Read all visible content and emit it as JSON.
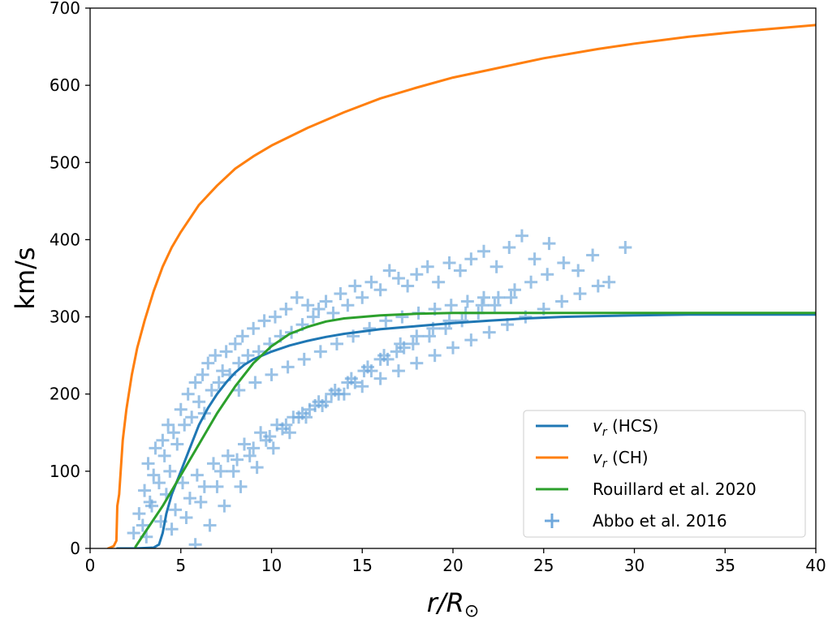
{
  "chart_data": {
    "type": "line",
    "title": "",
    "xlabel": "r/R⊙",
    "xlabel_main": "r/R",
    "xlabel_sub": "⊙",
    "ylabel": "km/s",
    "xlim": [
      0,
      40
    ],
    "ylim": [
      0,
      700
    ],
    "xticks": [
      0,
      5,
      10,
      15,
      20,
      25,
      30,
      35,
      40
    ],
    "yticks": [
      0,
      100,
      200,
      300,
      400,
      500,
      600,
      700
    ],
    "grid": false,
    "legend_position": "bottom-right",
    "series": [
      {
        "name": "v_r (HCS)",
        "legend_main": "v",
        "legend_sub": "r",
        "legend_suffix": " (HCS)",
        "type": "line",
        "color": "#1f77b4",
        "x": [
          1.5,
          2.5,
          3.5,
          3.8,
          4.0,
          4.2,
          4.5,
          5.0,
          5.5,
          6.0,
          6.5,
          7.0,
          7.5,
          8.0,
          8.5,
          9.0,
          10.0,
          11.0,
          12.0,
          13.0,
          14.0,
          15.0,
          16.0,
          17.0,
          18.0,
          19.0,
          20.0,
          22.0,
          24.0,
          26.0,
          28.0,
          30.0,
          33.0,
          36.0,
          40.0
        ],
        "y": [
          0,
          0,
          1,
          5,
          20,
          45,
          70,
          100,
          130,
          160,
          182,
          200,
          215,
          228,
          238,
          245,
          255,
          263,
          269,
          274,
          278,
          281,
          284,
          286,
          288,
          290,
          292,
          295,
          298,
          300,
          301,
          302,
          303,
          303,
          303
        ]
      },
      {
        "name": "v_r (CH)",
        "legend_main": "v",
        "legend_sub": "r",
        "legend_suffix": " (CH)",
        "type": "line",
        "color": "#ff7f0e",
        "x": [
          1.0,
          1.3,
          1.45,
          1.5,
          1.6,
          1.8,
          2.0,
          2.3,
          2.6,
          3.0,
          3.5,
          4.0,
          4.5,
          5.0,
          6.0,
          7.0,
          8.0,
          9.0,
          10.0,
          12.0,
          14.0,
          16.0,
          18.0,
          20.0,
          22.0,
          25.0,
          28.0,
          30.0,
          33.0,
          36.0,
          40.0
        ],
        "y": [
          0,
          3,
          10,
          55,
          70,
          140,
          180,
          225,
          260,
          295,
          333,
          365,
          390,
          410,
          445,
          470,
          492,
          508,
          522,
          545,
          565,
          583,
          597,
          610,
          620,
          635,
          647,
          654,
          663,
          670,
          678
        ]
      },
      {
        "name": "Rouillard et al. 2020",
        "type": "line",
        "color": "#2ca02c",
        "x": [
          2.5,
          3.0,
          4.0,
          5.0,
          6.0,
          7.0,
          8.0,
          9.0,
          10.0,
          11.0,
          12.0,
          13.0,
          14.0,
          15.0,
          16.0,
          17.0,
          18.0,
          20.0,
          25.0,
          30.0,
          35.0,
          40.0
        ],
        "y": [
          2,
          20,
          55,
          95,
          135,
          175,
          210,
          240,
          262,
          278,
          287,
          294,
          298,
          300,
          302,
          303,
          304,
          305,
          305,
          305,
          305,
          305
        ]
      },
      {
        "name": "Abbo et al. 2016",
        "type": "scatter",
        "marker": "+",
        "color": "#6fa8dc",
        "x": [
          2.4,
          2.7,
          2.9,
          3.0,
          3.2,
          3.3,
          3.5,
          3.6,
          3.8,
          4.0,
          4.1,
          4.3,
          4.4,
          4.6,
          4.8,
          5.0,
          5.2,
          5.4,
          5.6,
          5.8,
          6.0,
          6.2,
          6.3,
          6.5,
          6.7,
          6.9,
          7.1,
          7.3,
          7.5,
          7.7,
          8.0,
          8.2,
          8.4,
          8.7,
          9.0,
          9.3,
          9.6,
          9.9,
          10.2,
          10.5,
          10.8,
          11.1,
          11.4,
          11.7,
          12.0,
          12.3,
          12.6,
          13.0,
          13.4,
          13.8,
          14.2,
          14.6,
          15.0,
          15.5,
          16.0,
          16.5,
          17.0,
          17.5,
          18.0,
          18.6,
          19.2,
          19.8,
          20.4,
          21.0,
          21.7,
          22.4,
          23.1,
          23.8,
          24.5,
          25.3,
          26.1,
          26.9,
          27.7,
          28.6,
          29.5,
          3.4,
          4.2,
          5.1,
          5.9,
          6.8,
          7.6,
          8.5,
          9.4,
          10.3,
          11.2,
          12.1,
          13.0,
          14.0,
          15.0,
          16.0,
          17.0,
          18.0,
          19.0,
          20.0,
          21.0,
          22.0,
          23.0,
          24.0,
          25.0,
          26.0,
          27.0,
          28.0,
          3.1,
          3.9,
          4.7,
          5.5,
          6.3,
          7.2,
          8.1,
          9.0,
          9.9,
          10.8,
          11.7,
          12.6,
          13.5,
          14.4,
          15.3,
          16.2,
          17.1,
          18.0,
          18.9,
          19.8,
          20.7,
          21.6,
          22.5,
          23.4,
          24.3,
          25.2,
          4.5,
          5.3,
          6.1,
          7.0,
          7.9,
          8.8,
          9.7,
          10.6,
          11.5,
          12.4,
          13.3,
          14.2,
          15.1,
          16.0,
          16.9,
          17.8,
          18.7,
          19.6,
          20.5,
          21.4,
          22.3,
          23.2,
          8.2,
          9.1,
          10.0,
          10.9,
          11.8,
          12.7,
          13.6,
          14.5,
          15.4,
          16.3,
          17.2,
          18.1,
          19.0,
          19.9,
          20.8,
          21.7,
          5.8,
          6.6,
          7.4,
          8.3,
          9.2,
          10.1,
          11.0,
          11.9,
          12.8,
          13.7,
          14.6,
          15.5,
          16.4,
          17.3
        ],
        "y": [
          20,
          45,
          30,
          75,
          110,
          60,
          95,
          130,
          85,
          140,
          120,
          160,
          100,
          150,
          135,
          180,
          160,
          200,
          170,
          215,
          190,
          225,
          175,
          240,
          205,
          250,
          215,
          230,
          255,
          225,
          265,
          240,
          275,
          250,
          285,
          255,
          295,
          265,
          300,
          275,
          310,
          280,
          325,
          290,
          315,
          300,
          310,
          320,
          305,
          330,
          315,
          340,
          325,
          345,
          335,
          360,
          350,
          340,
          355,
          365,
          345,
          370,
          360,
          375,
          385,
          365,
          390,
          405,
          375,
          395,
          370,
          360,
          380,
          345,
          390,
          55,
          70,
          85,
          95,
          110,
          120,
          135,
          150,
          160,
          170,
          180,
          190,
          200,
          210,
          220,
          230,
          240,
          250,
          260,
          270,
          280,
          290,
          300,
          310,
          320,
          330,
          340,
          15,
          35,
          50,
          65,
          80,
          100,
          115,
          130,
          145,
          160,
          175,
          190,
          205,
          220,
          235,
          250,
          265,
          275,
          285,
          295,
          305,
          315,
          325,
          335,
          345,
          355,
          25,
          40,
          60,
          80,
          100,
          120,
          140,
          155,
          170,
          185,
          200,
          215,
          230,
          245,
          255,
          265,
          275,
          285,
          295,
          305,
          315,
          325,
          205,
          215,
          225,
          235,
          245,
          255,
          265,
          275,
          285,
          295,
          300,
          305,
          310,
          315,
          320,
          325,
          5,
          30,
          55,
          80,
          105,
          130,
          150,
          170,
          185,
          200,
          215,
          230,
          245,
          260
        ]
      }
    ]
  }
}
